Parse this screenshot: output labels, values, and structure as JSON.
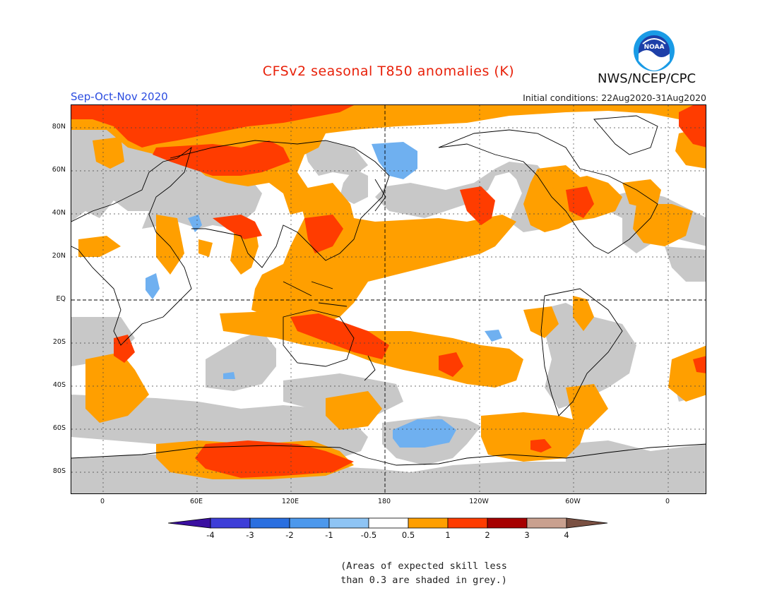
{
  "header": {
    "title": "CFSv2 seasonal T850 anomalies (K)",
    "season": "Sep-Oct-Nov 2020",
    "initial_conditions": "Initial conditions: 22Aug2020-31Aug2020",
    "agency": "NWS/NCEP/CPC",
    "logo_text": "NOAA"
  },
  "map": {
    "lat_labels": [
      "80N",
      "60N",
      "40N",
      "20N",
      "EQ",
      "20S",
      "40S",
      "60S",
      "80S"
    ],
    "lon_labels": [
      "0",
      "60E",
      "120E",
      "180",
      "120W",
      "60W",
      "0"
    ],
    "colors": {
      "grey_low_skill": "#c8c8c8",
      "neutral": "#ffffff",
      "warm_0_5_1": "#ff9f00",
      "warm_1_2": "#ff3c00",
      "cool_neg1_neg0_5": "#6fb0f0"
    }
  },
  "colorbar": {
    "labels": [
      "-4",
      "-3",
      "-2",
      "-1",
      "-0.5",
      "0.5",
      "1",
      "2",
      "3",
      "4"
    ],
    "colors": [
      "#3a0fa0",
      "#3d3ed8",
      "#2a6fe0",
      "#4c98ec",
      "#8ec4f4",
      "#ffffff",
      "#ff9f00",
      "#ff3c00",
      "#a60000",
      "#c9a08f",
      "#7a5042"
    ]
  },
  "footnote": {
    "line1": "(Areas of expected skill less",
    "line2": "than 0.3 are shaded in grey.)"
  }
}
